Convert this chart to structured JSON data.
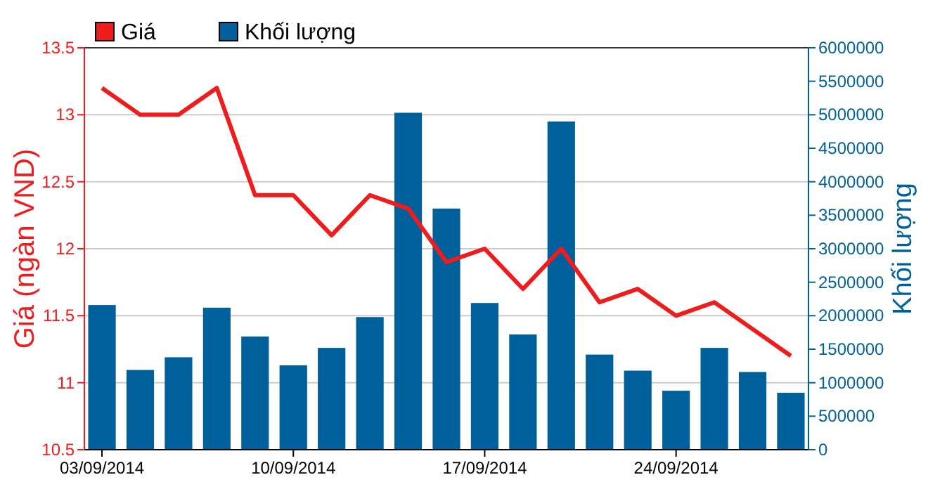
{
  "chart_data": {
    "type": "bar",
    "categories": [
      "03/09/2014",
      null,
      null,
      null,
      null,
      "10/09/2014",
      null,
      null,
      null,
      null,
      "17/09/2014",
      null,
      null,
      null,
      null,
      "24/09/2014",
      null,
      null,
      null
    ],
    "series": [
      {
        "name": "Giá",
        "type": "line",
        "color": "#ee1c1c",
        "values": [
          13.2,
          13.0,
          13.0,
          13.2,
          12.4,
          12.4,
          12.1,
          12.4,
          12.3,
          11.9,
          12.0,
          11.7,
          12.0,
          11.6,
          11.7,
          11.5,
          11.6,
          11.4,
          11.2
        ]
      },
      {
        "name": "Khối lượng",
        "axis": "y2",
        "color": "#00609c",
        "values": [
          2160000,
          1190000,
          1380000,
          2120000,
          1690000,
          1260000,
          1520000,
          1980000,
          5030000,
          3600000,
          2190000,
          1720000,
          4900000,
          1420000,
          1180000,
          880000,
          1520000,
          1160000,
          850000
        ]
      }
    ],
    "ylabel": "Giá (ngàn VND)",
    "y2label": "Khối lượng",
    "ylim": [
      10.5,
      13.5
    ],
    "yticks": [
      10.5,
      11,
      11.5,
      12,
      12.5,
      13,
      13.5
    ],
    "y2lim": [
      0,
      6000000
    ],
    "y2ticks": [
      0,
      500000,
      1000000,
      1500000,
      2000000,
      2500000,
      3000000,
      3500000,
      4000000,
      4500000,
      5000000,
      5500000,
      6000000
    ],
    "grid": "y",
    "legend": "top left",
    "marker": "none",
    "line_style": "solid"
  }
}
